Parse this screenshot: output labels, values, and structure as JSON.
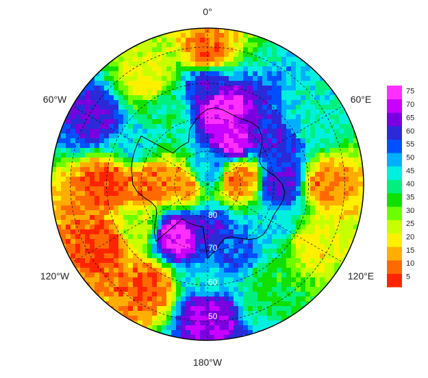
{
  "chart_data": {
    "type": "heatmap",
    "projection": "south-polar-stereographic",
    "title": "",
    "longitude_labels": [
      "0°",
      "60°E",
      "120°E",
      "180°W",
      "120°W",
      "60°W"
    ],
    "latitude_labels": [
      "80",
      "70",
      "60",
      "50"
    ],
    "colorbar": {
      "ticks": [
        5,
        10,
        15,
        20,
        25,
        30,
        35,
        40,
        45,
        50,
        55,
        60,
        65,
        70,
        75
      ],
      "range": [
        1,
        77
      ],
      "colors": [
        "#ff2400",
        "#ff6a00",
        "#ffae00",
        "#fff000",
        "#c8ff00",
        "#6cff00",
        "#10e000",
        "#00f080",
        "#00f0e0",
        "#00b0ff",
        "#0050ff",
        "#2a2ad8",
        "#7a00e0",
        "#c800ff",
        "#ff30ff"
      ]
    },
    "regions": [
      {
        "lon": 0,
        "lat": -52,
        "value": 8
      },
      {
        "lon": 0,
        "lat": -60,
        "value": 60
      },
      {
        "lon": 10,
        "lat": -67,
        "value": 75
      },
      {
        "lon": 60,
        "lat": -55,
        "value": 42
      },
      {
        "lon": 60,
        "lat": -65,
        "value": 60
      },
      {
        "lon": 90,
        "lat": -55,
        "value": 10
      },
      {
        "lon": 90,
        "lat": -68,
        "value": 62
      },
      {
        "lon": 120,
        "lat": -55,
        "value": 20
      },
      {
        "lon": 120,
        "lat": -65,
        "value": 45
      },
      {
        "lon": 150,
        "lat": -55,
        "value": 35
      },
      {
        "lon": 160,
        "lat": -68,
        "value": 55
      },
      {
        "lon": 180,
        "lat": -52,
        "value": 68
      },
      {
        "lon": 180,
        "lat": -62,
        "value": 45
      },
      {
        "lon": 180,
        "lat": -75,
        "value": 60
      },
      {
        "lon": -150,
        "lat": -55,
        "value": 6
      },
      {
        "lon": -150,
        "lat": -72,
        "value": 75
      },
      {
        "lon": -120,
        "lat": -55,
        "value": 5
      },
      {
        "lon": -120,
        "lat": -65,
        "value": 25
      },
      {
        "lon": -90,
        "lat": -60,
        "value": 5
      },
      {
        "lon": -90,
        "lat": -72,
        "value": 8
      },
      {
        "lon": -60,
        "lat": -52,
        "value": 62
      },
      {
        "lon": -60,
        "lat": -65,
        "value": 45
      },
      {
        "lon": -30,
        "lat": -55,
        "value": 20
      },
      {
        "lon": -30,
        "lat": -65,
        "value": 40
      },
      {
        "lon": 30,
        "lat": -75,
        "value": 72
      },
      {
        "lon": 80,
        "lat": -80,
        "value": 8
      },
      {
        "lon": 0,
        "lat": -85,
        "value": 48
      },
      {
        "lon": -90,
        "lat": -82,
        "value": 10
      }
    ]
  }
}
